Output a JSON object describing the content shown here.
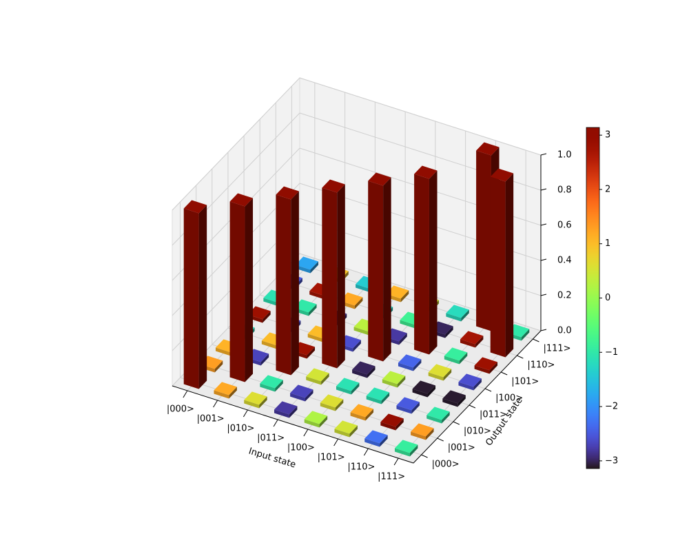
{
  "chart_data": {
    "type": "bar3d",
    "x_label": "Input state",
    "y_label": "Output state",
    "x_categories": [
      "|000>",
      "|001>",
      "|010>",
      "|011>",
      "|100>",
      "|101>",
      "|110>",
      "|111>"
    ],
    "y_categories": [
      "|000>",
      "|001>",
      "|010>",
      "|011>",
      "|100>",
      "|101>",
      "|110>",
      "|111>"
    ],
    "heights": [
      [
        1,
        0.02,
        0.02,
        0.02,
        0.02,
        0.02,
        0.02,
        0.02
      ],
      [
        0.02,
        1,
        0.02,
        0.02,
        0.02,
        0.02,
        0.02,
        0.02
      ],
      [
        0.02,
        0.02,
        1,
        0.02,
        0.02,
        0.02,
        0.02,
        0.02
      ],
      [
        0.02,
        0.02,
        0.02,
        1,
        0.02,
        0.02,
        0.02,
        0.02
      ],
      [
        0.02,
        0.02,
        0.02,
        0.02,
        1,
        0.02,
        0.02,
        0.02
      ],
      [
        0.02,
        0.02,
        0.02,
        0.02,
        0.02,
        1,
        0.02,
        0.02
      ],
      [
        0.02,
        0.02,
        0.02,
        0.02,
        0.02,
        0.02,
        0.02,
        1
      ],
      [
        0.02,
        0.02,
        0.02,
        0.02,
        0.02,
        0.02,
        1,
        0.02
      ]
    ],
    "phases": [
      [
        3.1,
        1.3,
        1.1,
        -1.2,
        2.8,
        -1.1,
        -2.5,
        -1.8
      ],
      [
        1.2,
        3.1,
        -2.7,
        1.0,
        -2.6,
        -1.0,
        2.7,
        0.9
      ],
      [
        0.6,
        -1.0,
        3.1,
        2.8,
        1.0,
        -2.9,
        1.2,
        -1.4
      ],
      [
        -2.8,
        -2.7,
        0.5,
        3.1,
        -2.6,
        0.3,
        -1.3,
        1.1
      ],
      [
        0.2,
        0.6,
        -1.1,
        -3.0,
        3.1,
        -2.8,
        -0.8,
        0.5
      ],
      [
        0.5,
        1.2,
        -1.1,
        0.3,
        -2.4,
        3.1,
        -3.0,
        -1.2
      ],
      [
        -2.3,
        2.9,
        -2.5,
        -3.1,
        0.6,
        -0.9,
        2.7,
        3.1
      ],
      [
        -0.9,
        1.3,
        -1.0,
        -3.1,
        -2.6,
        2.8,
        3.1,
        -1.0
      ]
    ],
    "zlim": [
      0,
      1
    ],
    "zticks": [
      {
        "value": 0,
        "label": "0.0"
      },
      0.2,
      0.4,
      0.6,
      0.8,
      {
        "value": 1,
        "label": "1.0"
      }
    ],
    "colormap": "turbo",
    "clim": [
      -3.14159,
      3.14159
    ],
    "cticks": [
      {
        "value": -3,
        "label": "−3"
      },
      {
        "value": -2,
        "label": "−2"
      },
      {
        "value": -1,
        "label": "−1"
      },
      0,
      1,
      2,
      3
    ],
    "grid": true
  }
}
